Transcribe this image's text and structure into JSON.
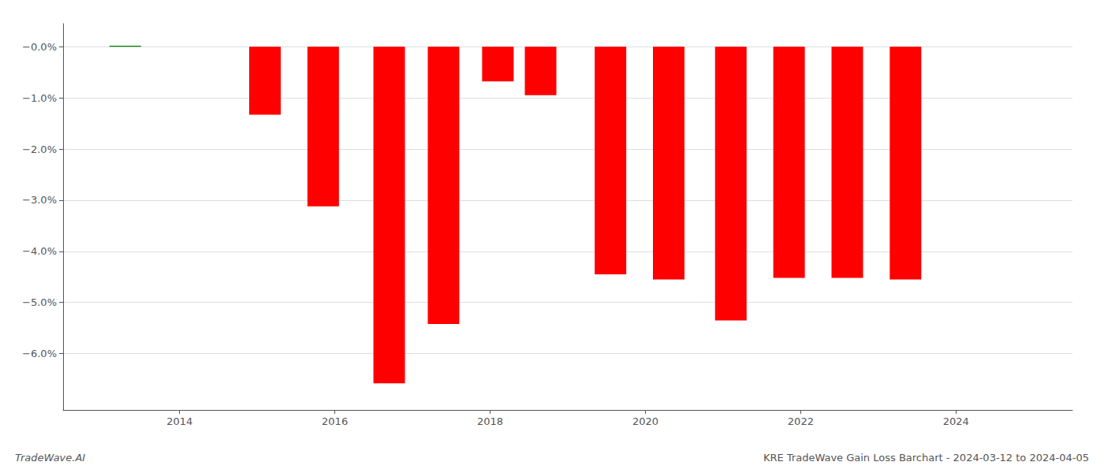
{
  "chart_data": {
    "type": "bar",
    "title": "KRE TradeWave Gain Loss Barchart - 2024-03-12 to 2024-04-05",
    "annotations": [
      "TradeWave.AI"
    ],
    "x": [
      2013.3,
      2015.1,
      2015.85,
      2016.7,
      2017.4,
      2018.1,
      2018.65,
      2019.55,
      2020.3,
      2021.1,
      2021.85,
      2022.6,
      2023.35
    ],
    "values": [
      0.02,
      -1.33,
      -3.12,
      -6.58,
      -5.42,
      -0.68,
      -0.95,
      -4.45,
      -4.55,
      -5.35,
      -4.52,
      -4.52,
      -4.55
    ],
    "colors": [
      "#008000",
      "#ff0000",
      "#ff0000",
      "#ff0000",
      "#ff0000",
      "#ff0000",
      "#ff0000",
      "#ff0000",
      "#ff0000",
      "#ff0000",
      "#ff0000",
      "#ff0000",
      "#ff0000"
    ],
    "xlim": [
      2012.5,
      2025.5
    ],
    "xticks": [
      2014,
      2016,
      2018,
      2020,
      2022,
      2024
    ],
    "ylim": [
      -7.1,
      0.45
    ],
    "yticks": [
      {
        "value": 0.0,
        "label": "−0.0%"
      },
      {
        "value": -1.0,
        "label": "−1.0%"
      },
      {
        "value": -2.0,
        "label": "−2.0%"
      },
      {
        "value": -3.0,
        "label": "−3.0%"
      },
      {
        "value": -4.0,
        "label": "−4.0%"
      },
      {
        "value": -5.0,
        "label": "−5.0%"
      },
      {
        "value": -6.0,
        "label": "−6.0%"
      }
    ],
    "grid": true
  }
}
